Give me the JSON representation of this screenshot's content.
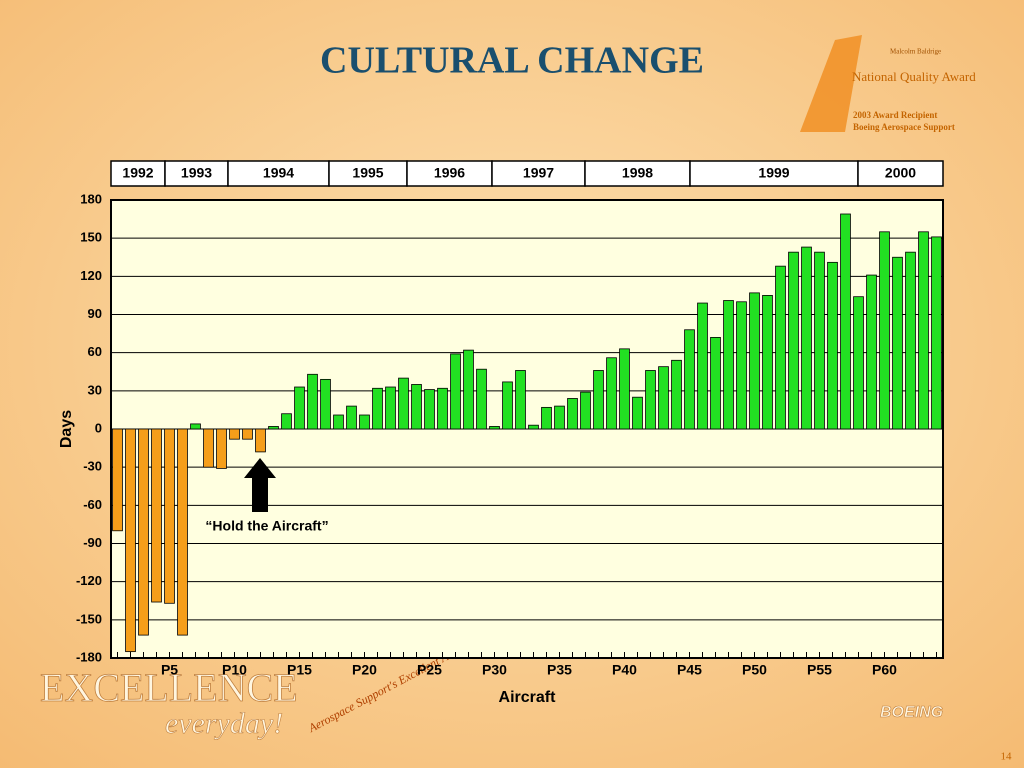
{
  "chart_data": {
    "type": "bar",
    "title": "CULTURAL CHANGE",
    "y_label": "Days",
    "x_label": "Aircraft",
    "annotation": "“Hold the Aircraft”",
    "years": [
      "1992",
      "1993",
      "1994",
      "1995",
      "1996",
      "1997",
      "1998",
      "1999",
      "2000"
    ],
    "categories": [
      null,
      null,
      null,
      null,
      "P5",
      null,
      null,
      null,
      null,
      "P10",
      null,
      null,
      null,
      null,
      "P15",
      null,
      null,
      null,
      null,
      "P20",
      null,
      null,
      null,
      null,
      "P25",
      null,
      null,
      null,
      null,
      "P30",
      null,
      null,
      null,
      null,
      "P35",
      null,
      null,
      null,
      null,
      "P40",
      null,
      null,
      null,
      null,
      "P45",
      null,
      null,
      null,
      null,
      "P50",
      null,
      null,
      null,
      null,
      "P55",
      null,
      null,
      null,
      null,
      "P60",
      null,
      null,
      null,
      null
    ],
    "values": [
      -80,
      -175,
      -162,
      -136,
      -137,
      -162,
      4,
      -30,
      -31,
      -8,
      -8,
      -18,
      2,
      12,
      33,
      43,
      39,
      11,
      18,
      11,
      32,
      33,
      40,
      35,
      31,
      32,
      59,
      62,
      47,
      2,
      37,
      46,
      3,
      17,
      18,
      24,
      29,
      46,
      56,
      63,
      25,
      46,
      49,
      54,
      78,
      99,
      72,
      101,
      100,
      107,
      105,
      128,
      139,
      143,
      139,
      131,
      169,
      104,
      121,
      155,
      135,
      139,
      155,
      151
    ],
    "positive_color": "#22e022",
    "negative_color": "#f59e1a",
    "ylim": [
      -180,
      180
    ],
    "yticks": [
      180,
      150,
      120,
      90,
      60,
      30,
      0,
      -30,
      -60,
      -90,
      -120,
      -150,
      -180
    ],
    "grid": true
  },
  "slide": {
    "award_small": "Malcolm Baldrige",
    "award_title": "National Quality Award",
    "award_recipient": "2003 Award Recipient",
    "award_org": "Boeing Aerospace Support",
    "excellence": "EXCELLENCE",
    "everyday": "everyday!",
    "adventure": "Aerospace Support's Excellent Adventure",
    "boeing": "BOEING",
    "page": "14"
  }
}
